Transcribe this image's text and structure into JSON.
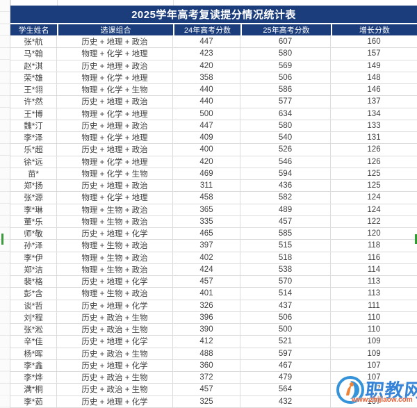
{
  "title": "2025学年高考复读提分情况统计表",
  "table": {
    "headers": [
      "学生姓名",
      "选课组合",
      "24年高考分数",
      "25年高考分数",
      "增长分数"
    ],
    "rows": [
      {
        "name": "张*航",
        "combo": "历史 + 地理 + 政治",
        "s24": "447",
        "s25": "607",
        "gain": "160"
      },
      {
        "name": "马*翰",
        "combo": "物理 + 化学 + 地理",
        "s24": "423",
        "s25": "580",
        "gain": "157"
      },
      {
        "name": "赵*淇",
        "combo": "历史 + 地理 + 政治",
        "s24": "420",
        "s25": "569",
        "gain": "149"
      },
      {
        "name": "荣*雄",
        "combo": "物理 + 化学 + 地理",
        "s24": "358",
        "s25": "506",
        "gain": "148"
      },
      {
        "name": "王*翎",
        "combo": "物理 + 化学 + 生物",
        "s24": "440",
        "s25": "586",
        "gain": "146"
      },
      {
        "name": "许*然",
        "combo": "历史 + 地理 + 政治",
        "s24": "440",
        "s25": "577",
        "gain": "137"
      },
      {
        "name": "王*博",
        "combo": "物理 + 化学 + 地理",
        "s24": "500",
        "s25": "634",
        "gain": "134"
      },
      {
        "name": "魏*汀",
        "combo": "历史 + 地理 + 政治",
        "s24": "447",
        "s25": "580",
        "gain": "133"
      },
      {
        "name": "李*泽",
        "combo": "物理 + 化学 + 地理",
        "s24": "409",
        "s25": "540",
        "gain": "131"
      },
      {
        "name": "乐*超",
        "combo": "历史 + 地理 + 政治",
        "s24": "400",
        "s25": "526",
        "gain": "126"
      },
      {
        "name": "徐*远",
        "combo": "物理 + 化学 + 地理",
        "s24": "420",
        "s25": "546",
        "gain": "126"
      },
      {
        "name": "苗*",
        "combo": "物理 + 化学 + 生物",
        "s24": "469",
        "s25": "594",
        "gain": "125"
      },
      {
        "name": "郑*扬",
        "combo": "历史 + 地理 + 政治",
        "s24": "311",
        "s25": "436",
        "gain": "125"
      },
      {
        "name": "张*源",
        "combo": "物理 + 化学 + 地理",
        "s24": "458",
        "s25": "582",
        "gain": "124"
      },
      {
        "name": "李*琳",
        "combo": "物理 + 生物 + 政治",
        "s24": "365",
        "s25": "489",
        "gain": "124"
      },
      {
        "name": "董*乐",
        "combo": "物理 + 生物 + 政治",
        "s24": "335",
        "s25": "457",
        "gain": "122"
      },
      {
        "name": "师*敬",
        "combo": "历史 + 地理 + 化学",
        "s24": "465",
        "s25": "585",
        "gain": "120"
      },
      {
        "name": "孙*泽",
        "combo": "物理 + 生物 + 政治",
        "s24": "397",
        "s25": "515",
        "gain": "118"
      },
      {
        "name": "李*伊",
        "combo": "物理 + 生物 + 政治",
        "s24": "402",
        "s25": "518",
        "gain": "116"
      },
      {
        "name": "郑*洁",
        "combo": "物理 + 生物 + 政治",
        "s24": "424",
        "s25": "538",
        "gain": "114"
      },
      {
        "name": "裴*格",
        "combo": "历史 + 地理 + 化学",
        "s24": "457",
        "s25": "570",
        "gain": "113"
      },
      {
        "name": "彭*含",
        "combo": "物理 + 生物 + 政治",
        "s24": "401",
        "s25": "514",
        "gain": "113"
      },
      {
        "name": "谈*哲",
        "combo": "历史 + 地理 + 化学",
        "s24": "326",
        "s25": "437",
        "gain": "111"
      },
      {
        "name": "刘*程",
        "combo": "历史 + 政治 + 生物",
        "s24": "396",
        "s25": "506",
        "gain": "110"
      },
      {
        "name": "张*淞",
        "combo": "历史 + 政治 + 生物",
        "s24": "390",
        "s25": "500",
        "gain": "110"
      },
      {
        "name": "辛*佳",
        "combo": "历史 + 地理 + 化学",
        "s24": "412",
        "s25": "521",
        "gain": "109"
      },
      {
        "name": "杨*晖",
        "combo": "历史 + 政治 + 生物",
        "s24": "488",
        "s25": "597",
        "gain": "109"
      },
      {
        "name": "李*鑫",
        "combo": "历史 + 地理 + 化学",
        "s24": "360",
        "s25": "467",
        "gain": "107"
      },
      {
        "name": "李*烨",
        "combo": "历史 + 政治 + 生物",
        "s24": "372",
        "s25": "479",
        "gain": "107"
      },
      {
        "name": "满*桐",
        "combo": "历史 + 政治 + 生物",
        "s24": "457",
        "s25": "564",
        "gain": "107"
      },
      {
        "name": "李*茹",
        "combo": "历史 + 地理 + 化学",
        "s24": "325",
        "s25": "432",
        "gain": "107"
      }
    ]
  },
  "watermark": {
    "site_name": "职教网",
    "url": "www.zhijiaow.com"
  },
  "colors": {
    "header_bg": "#1b3d7b",
    "header_text": "#ffffff",
    "grid_line": "#dcdcdc",
    "cell_text": "#3f3f3f",
    "selection_green": "#3c9a3c",
    "watermark_blue": "#2b7ed6",
    "watermark_orange": "#e4572c"
  }
}
